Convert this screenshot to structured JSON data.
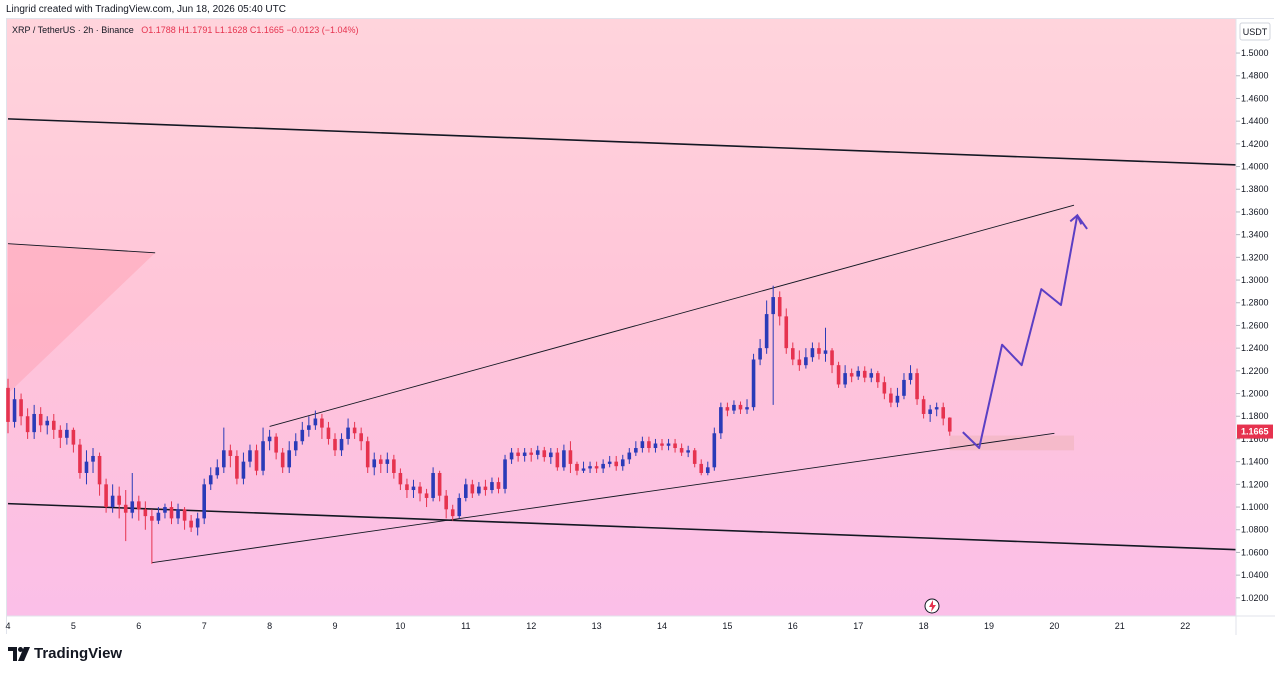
{
  "caption": "Lingrid created with TradingView.com, Jun 18, 2026 05:40 UTC",
  "legend": {
    "symbol": "XRP / TetherUS · 2h · Binance",
    "open": "O1.1788",
    "high": "H1.1791",
    "low": "L1.1628",
    "close": "C1.1665",
    "change": "−0.0123 (−1.04%)"
  },
  "currency_label": "USDT",
  "brand": "TradingView",
  "colors": {
    "up": "#2a3bb8",
    "down": "#e6334f",
    "price_badge": "#e6334f",
    "projection": "#5b3fc4"
  },
  "chart_data": {
    "type": "candlestick",
    "symbol": "XRP / TetherUS",
    "interval": "2h",
    "exchange": "Binance",
    "x_ticks": [
      "4",
      "5",
      "6",
      "7",
      "8",
      "9",
      "10",
      "11",
      "12",
      "13",
      "14",
      "15",
      "16",
      "17",
      "18",
      "19",
      "20",
      "21",
      "22"
    ],
    "x_range_days": [
      4,
      23
    ],
    "y_ticks": [
      "1.0200",
      "1.0400",
      "1.0600",
      "1.0800",
      "1.1000",
      "1.1200",
      "1.1400",
      "1.1600",
      "1.1800",
      "1.2000",
      "1.2200",
      "1.2400",
      "1.2600",
      "1.2800",
      "1.3000",
      "1.3200",
      "1.3400",
      "1.3600",
      "1.3800",
      "1.4000",
      "1.4200",
      "1.4400",
      "1.4600",
      "1.4800",
      "1.5000"
    ],
    "ylim": [
      1.004,
      1.53
    ],
    "last_price": "1.1665",
    "candles": [
      [
        4.0,
        1.205,
        1.175,
        1.213,
        1.165
      ],
      [
        4.1,
        1.175,
        1.195,
        1.205,
        1.17
      ],
      [
        4.2,
        1.195,
        1.18,
        1.2,
        1.172
      ],
      [
        4.3,
        1.18,
        1.166,
        1.187,
        1.16
      ],
      [
        4.4,
        1.166,
        1.182,
        1.19,
        1.16
      ],
      [
        4.5,
        1.182,
        1.172,
        1.188,
        1.166
      ],
      [
        4.6,
        1.172,
        1.176,
        1.18,
        1.164
      ],
      [
        4.7,
        1.176,
        1.168,
        1.182,
        1.16
      ],
      [
        4.8,
        1.168,
        1.161,
        1.172,
        1.152
      ],
      [
        4.9,
        1.161,
        1.168,
        1.174,
        1.155
      ],
      [
        5.0,
        1.168,
        1.155,
        1.17,
        1.148
      ],
      [
        5.1,
        1.155,
        1.13,
        1.16,
        1.125
      ],
      [
        5.2,
        1.13,
        1.14,
        1.15,
        1.12
      ],
      [
        5.3,
        1.14,
        1.145,
        1.152,
        1.13
      ],
      [
        5.4,
        1.145,
        1.12,
        1.148,
        1.11
      ],
      [
        5.5,
        1.12,
        1.1,
        1.125,
        1.095
      ],
      [
        5.6,
        1.1,
        1.11,
        1.12,
        1.095
      ],
      [
        5.7,
        1.11,
        1.102,
        1.118,
        1.09
      ],
      [
        5.8,
        1.102,
        1.095,
        1.115,
        1.07
      ],
      [
        5.9,
        1.095,
        1.105,
        1.13,
        1.09
      ],
      [
        6.0,
        1.105,
        1.098,
        1.11,
        1.088
      ],
      [
        6.1,
        1.098,
        1.092,
        1.105,
        1.08
      ],
      [
        6.2,
        1.092,
        1.088,
        1.098,
        1.05
      ],
      [
        6.3,
        1.088,
        1.095,
        1.1,
        1.085
      ],
      [
        6.4,
        1.095,
        1.1,
        1.103,
        1.09
      ],
      [
        6.5,
        1.1,
        1.09,
        1.105,
        1.085
      ],
      [
        6.6,
        1.09,
        1.098,
        1.103,
        1.085
      ],
      [
        6.7,
        1.098,
        1.088,
        1.1,
        1.08
      ],
      [
        6.8,
        1.088,
        1.082,
        1.093,
        1.078
      ],
      [
        6.9,
        1.082,
        1.09,
        1.095,
        1.075
      ],
      [
        7.0,
        1.09,
        1.12,
        1.125,
        1.085
      ],
      [
        7.1,
        1.12,
        1.128,
        1.135,
        1.115
      ],
      [
        7.2,
        1.128,
        1.135,
        1.142,
        1.125
      ],
      [
        7.3,
        1.135,
        1.15,
        1.17,
        1.13
      ],
      [
        7.4,
        1.15,
        1.145,
        1.155,
        1.135
      ],
      [
        7.5,
        1.145,
        1.125,
        1.15,
        1.12
      ],
      [
        7.6,
        1.125,
        1.14,
        1.148,
        1.12
      ],
      [
        7.7,
        1.14,
        1.15,
        1.155,
        1.135
      ],
      [
        7.8,
        1.15,
        1.132,
        1.155,
        1.128
      ],
      [
        7.9,
        1.132,
        1.158,
        1.17,
        1.128
      ],
      [
        8.0,
        1.158,
        1.162,
        1.168,
        1.15
      ],
      [
        8.1,
        1.162,
        1.148,
        1.165,
        1.142
      ],
      [
        8.2,
        1.148,
        1.135,
        1.152,
        1.13
      ],
      [
        8.3,
        1.135,
        1.15,
        1.158,
        1.13
      ],
      [
        8.4,
        1.15,
        1.158,
        1.165,
        1.145
      ],
      [
        8.5,
        1.158,
        1.168,
        1.175,
        1.155
      ],
      [
        8.6,
        1.168,
        1.172,
        1.18,
        1.162
      ],
      [
        8.7,
        1.172,
        1.178,
        1.185,
        1.168
      ],
      [
        8.8,
        1.178,
        1.17,
        1.182,
        1.16
      ],
      [
        8.9,
        1.17,
        1.16,
        1.175,
        1.155
      ],
      [
        9.0,
        1.16,
        1.15,
        1.165,
        1.145
      ],
      [
        9.1,
        1.15,
        1.16,
        1.165,
        1.145
      ],
      [
        9.2,
        1.16,
        1.17,
        1.178,
        1.155
      ],
      [
        9.3,
        1.17,
        1.165,
        1.175,
        1.16
      ],
      [
        9.4,
        1.165,
        1.158,
        1.17,
        1.15
      ],
      [
        9.5,
        1.158,
        1.135,
        1.162,
        1.13
      ],
      [
        9.6,
        1.135,
        1.142,
        1.148,
        1.128
      ],
      [
        9.7,
        1.142,
        1.138,
        1.146,
        1.13
      ],
      [
        9.8,
        1.138,
        1.142,
        1.148,
        1.13
      ],
      [
        9.9,
        1.142,
        1.13,
        1.146,
        1.125
      ],
      [
        10.0,
        1.13,
        1.12,
        1.134,
        1.115
      ],
      [
        10.1,
        1.12,
        1.115,
        1.125,
        1.108
      ],
      [
        10.2,
        1.115,
        1.118,
        1.124,
        1.108
      ],
      [
        10.3,
        1.118,
        1.112,
        1.122,
        1.105
      ],
      [
        10.4,
        1.112,
        1.108,
        1.116,
        1.1
      ],
      [
        10.5,
        1.108,
        1.13,
        1.135,
        1.105
      ],
      [
        10.6,
        1.13,
        1.11,
        1.132,
        1.105
      ],
      [
        10.7,
        1.11,
        1.098,
        1.115,
        1.09
      ],
      [
        10.8,
        1.098,
        1.092,
        1.102,
        1.088
      ],
      [
        10.9,
        1.092,
        1.108,
        1.112,
        1.09
      ],
      [
        11.0,
        1.108,
        1.12,
        1.125,
        1.105
      ],
      [
        11.1,
        1.12,
        1.112,
        1.124,
        1.108
      ],
      [
        11.2,
        1.112,
        1.118,
        1.122,
        1.11
      ],
      [
        11.3,
        1.118,
        1.115,
        1.124,
        1.11
      ],
      [
        11.4,
        1.115,
        1.122,
        1.126,
        1.112
      ],
      [
        11.5,
        1.122,
        1.116,
        1.126,
        1.112
      ],
      [
        11.6,
        1.116,
        1.142,
        1.146,
        1.112
      ],
      [
        11.7,
        1.142,
        1.148,
        1.152,
        1.138
      ],
      [
        11.8,
        1.148,
        1.145,
        1.152,
        1.14
      ],
      [
        11.9,
        1.145,
        1.148,
        1.152,
        1.14
      ],
      [
        12.0,
        1.148,
        1.146,
        1.152,
        1.14
      ],
      [
        12.1,
        1.146,
        1.15,
        1.154,
        1.142
      ],
      [
        12.2,
        1.15,
        1.144,
        1.153,
        1.14
      ],
      [
        12.3,
        1.144,
        1.148,
        1.152,
        1.138
      ],
      [
        12.4,
        1.148,
        1.135,
        1.152,
        1.132
      ],
      [
        12.5,
        1.135,
        1.15,
        1.155,
        1.132
      ],
      [
        12.6,
        1.15,
        1.138,
        1.158,
        1.13
      ],
      [
        12.7,
        1.138,
        1.132,
        1.14,
        1.128
      ],
      [
        12.8,
        1.132,
        1.134,
        1.14,
        1.13
      ],
      [
        12.9,
        1.134,
        1.136,
        1.14,
        1.13
      ],
      [
        13.0,
        1.136,
        1.134,
        1.14,
        1.13
      ],
      [
        13.1,
        1.134,
        1.138,
        1.142,
        1.13
      ],
      [
        13.2,
        1.138,
        1.14,
        1.145,
        1.135
      ],
      [
        13.3,
        1.14,
        1.136,
        1.145,
        1.132
      ],
      [
        13.4,
        1.136,
        1.142,
        1.146,
        1.132
      ],
      [
        13.5,
        1.142,
        1.148,
        1.152,
        1.138
      ],
      [
        13.6,
        1.148,
        1.152,
        1.158,
        1.145
      ],
      [
        13.7,
        1.152,
        1.158,
        1.162,
        1.148
      ],
      [
        13.8,
        1.158,
        1.152,
        1.162,
        1.148
      ],
      [
        13.9,
        1.152,
        1.156,
        1.16,
        1.148
      ],
      [
        14.0,
        1.156,
        1.154,
        1.16,
        1.15
      ],
      [
        14.1,
        1.154,
        1.156,
        1.16,
        1.15
      ],
      [
        14.2,
        1.156,
        1.152,
        1.16,
        1.148
      ],
      [
        14.3,
        1.152,
        1.148,
        1.156,
        1.145
      ],
      [
        14.4,
        1.148,
        1.15,
        1.154,
        1.144
      ],
      [
        14.5,
        1.15,
        1.138,
        1.152,
        1.135
      ],
      [
        14.6,
        1.138,
        1.13,
        1.142,
        1.128
      ],
      [
        14.7,
        1.13,
        1.135,
        1.14,
        1.128
      ],
      [
        14.8,
        1.135,
        1.165,
        1.17,
        1.132
      ],
      [
        14.9,
        1.165,
        1.188,
        1.192,
        1.16
      ],
      [
        15.0,
        1.188,
        1.185,
        1.192,
        1.18
      ],
      [
        15.1,
        1.185,
        1.19,
        1.194,
        1.182
      ],
      [
        15.2,
        1.19,
        1.186,
        1.193,
        1.182
      ],
      [
        15.3,
        1.186,
        1.188,
        1.195,
        1.182
      ],
      [
        15.4,
        1.188,
        1.23,
        1.235,
        1.185
      ],
      [
        15.5,
        1.23,
        1.24,
        1.248,
        1.225
      ],
      [
        15.6,
        1.24,
        1.27,
        1.282,
        1.235
      ],
      [
        15.7,
        1.27,
        1.285,
        1.295,
        1.19
      ],
      [
        15.8,
        1.285,
        1.268,
        1.29,
        1.26
      ],
      [
        15.9,
        1.268,
        1.24,
        1.275,
        1.235
      ],
      [
        16.0,
        1.24,
        1.23,
        1.245,
        1.225
      ],
      [
        16.1,
        1.23,
        1.225,
        1.238,
        1.22
      ],
      [
        16.2,
        1.225,
        1.232,
        1.24,
        1.222
      ],
      [
        16.3,
        1.232,
        1.24,
        1.245,
        1.228
      ],
      [
        16.4,
        1.24,
        1.235,
        1.245,
        1.23
      ],
      [
        16.5,
        1.235,
        1.238,
        1.258,
        1.228
      ],
      [
        16.6,
        1.238,
        1.225,
        1.24,
        1.218
      ],
      [
        16.7,
        1.225,
        1.208,
        1.228,
        1.205
      ],
      [
        16.8,
        1.208,
        1.218,
        1.225,
        1.205
      ],
      [
        16.9,
        1.218,
        1.215,
        1.222,
        1.21
      ],
      [
        17.0,
        1.215,
        1.22,
        1.224,
        1.212
      ],
      [
        17.1,
        1.22,
        1.214,
        1.224,
        1.21
      ],
      [
        17.2,
        1.214,
        1.218,
        1.222,
        1.21
      ],
      [
        17.3,
        1.218,
        1.21,
        1.22,
        1.205
      ],
      [
        17.4,
        1.21,
        1.2,
        1.215,
        1.195
      ],
      [
        17.5,
        1.2,
        1.192,
        1.205,
        1.188
      ],
      [
        17.6,
        1.192,
        1.198,
        1.205,
        1.188
      ],
      [
        17.7,
        1.198,
        1.212,
        1.218,
        1.195
      ],
      [
        17.8,
        1.212,
        1.218,
        1.225,
        1.208
      ],
      [
        17.9,
        1.218,
        1.195,
        1.222,
        1.19
      ],
      [
        18.0,
        1.195,
        1.182,
        1.198,
        1.178
      ],
      [
        18.1,
        1.182,
        1.186,
        1.19,
        1.175
      ],
      [
        18.2,
        1.186,
        1.188,
        1.192,
        1.18
      ],
      [
        18.3,
        1.188,
        1.178,
        1.192,
        1.172
      ],
      [
        18.4,
        1.1788,
        1.1665,
        1.1791,
        1.1628
      ]
    ],
    "trendlines": [
      {
        "role": "upper-channel",
        "points": [
          [
            4.0,
            1.442
          ],
          [
            23.0,
            1.401
          ]
        ]
      },
      {
        "role": "lower-channel",
        "points": [
          [
            4.0,
            1.103
          ],
          [
            23.0,
            1.062
          ]
        ]
      },
      {
        "role": "wedge-top",
        "points": [
          [
            8.0,
            1.171
          ],
          [
            20.3,
            1.366
          ]
        ]
      },
      {
        "role": "wedge-bottom",
        "points": [
          [
            6.2,
            1.051
          ],
          [
            20.0,
            1.165
          ]
        ]
      },
      {
        "role": "left-line",
        "points": [
          [
            4.0,
            1.332
          ],
          [
            6.25,
            1.324
          ]
        ]
      }
    ],
    "projection_path": [
      [
        18.6,
        1.166
      ],
      [
        18.85,
        1.152
      ],
      [
        19.2,
        1.243
      ],
      [
        19.5,
        1.225
      ],
      [
        19.8,
        1.292
      ],
      [
        20.1,
        1.278
      ],
      [
        20.35,
        1.357
      ],
      [
        20.5,
        1.345
      ]
    ],
    "support_zone": {
      "x": [
        18.4,
        20.3
      ],
      "y": [
        1.15,
        1.163
      ]
    }
  }
}
